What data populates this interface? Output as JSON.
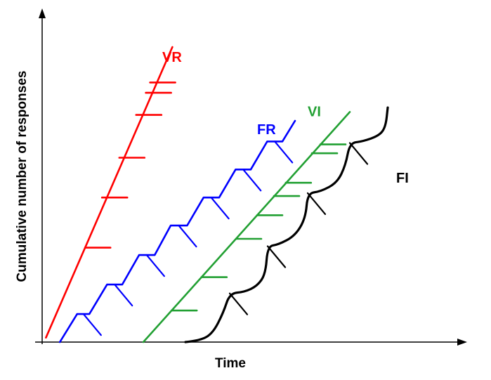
{
  "chart_data": {
    "type": "line",
    "title": "",
    "xlabel": "Time",
    "ylabel": "Cumulative number of responses",
    "xlim": [
      0,
      100
    ],
    "ylim": [
      0,
      100
    ],
    "grid": false,
    "legend": "none (series labelled directly next to each curve)",
    "series": [
      {
        "name": "VR",
        "color": "#ff0000",
        "style": "straight",
        "points": [
          [
            0.9,
            1.5
          ],
          [
            30.9,
            100
          ]
        ],
        "ticks": [
          [
            10.2,
            32
          ],
          [
            14.2,
            49
          ],
          [
            18.3,
            62.5
          ],
          [
            22.3,
            77
          ],
          [
            24.6,
            84.5
          ],
          [
            25.6,
            88
          ]
        ],
        "tick_dir": "right"
      },
      {
        "name": "FR",
        "color": "#0000ff",
        "style": "staircase",
        "points": [
          [
            4.2,
            0
          ],
          [
            8.3,
            9.5
          ],
          [
            11.2,
            9.5
          ],
          [
            15.4,
            19.5
          ],
          [
            19,
            19.5
          ],
          [
            23,
            29.5
          ],
          [
            26.7,
            29.5
          ],
          [
            30.5,
            39.5
          ],
          [
            34.4,
            39.5
          ],
          [
            38.3,
            49
          ],
          [
            42,
            49
          ],
          [
            45.9,
            58.5
          ],
          [
            49.5,
            58.5
          ],
          [
            53.4,
            68
          ],
          [
            57,
            68
          ],
          [
            60,
            75
          ]
        ],
        "ticks": [
          [
            9.8,
            9.5
          ],
          [
            17.2,
            19.5
          ],
          [
            24.8,
            29.5
          ],
          [
            32.4,
            39.5
          ],
          [
            40.1,
            49
          ],
          [
            47.7,
            58.5
          ],
          [
            55.2,
            68
          ]
        ],
        "tick_dir": "down-right"
      },
      {
        "name": "VI",
        "color": "#22a033",
        "style": "straight",
        "points": [
          [
            24,
            0
          ],
          [
            73,
            78
          ]
        ],
        "ticks": [
          [
            30.7,
            10.7
          ],
          [
            37.8,
            22
          ],
          [
            46,
            35
          ],
          [
            51,
            43
          ],
          [
            55,
            49.5
          ],
          [
            57.8,
            54
          ],
          [
            64,
            64
          ],
          [
            66,
            67
          ]
        ],
        "tick_dir": "right"
      },
      {
        "name": "FI",
        "color": "#000000",
        "style": "scalloped",
        "points": [
          [
            34,
            0
          ],
          [
            37.5,
            0.5
          ],
          [
            40.5,
            3
          ],
          [
            43,
            10
          ],
          [
            44.5,
            16.5
          ],
          [
            48,
            17
          ],
          [
            51,
            19
          ],
          [
            53,
            23
          ],
          [
            53.5,
            32.5
          ],
          [
            56,
            33
          ],
          [
            60,
            36
          ],
          [
            62.5,
            42
          ],
          [
            63,
            50.5
          ],
          [
            66,
            51
          ],
          [
            70,
            54
          ],
          [
            72,
            60
          ],
          [
            73,
            67.5
          ],
          [
            76,
            68
          ],
          [
            80,
            70
          ],
          [
            81.5,
            73
          ],
          [
            82,
            79.5
          ]
        ],
        "ticks": [
          [
            44.5,
            16.5
          ],
          [
            53.5,
            32.5
          ],
          [
            63,
            50.5
          ],
          [
            73,
            67.5
          ]
        ],
        "tick_dir": "down-right"
      }
    ]
  }
}
